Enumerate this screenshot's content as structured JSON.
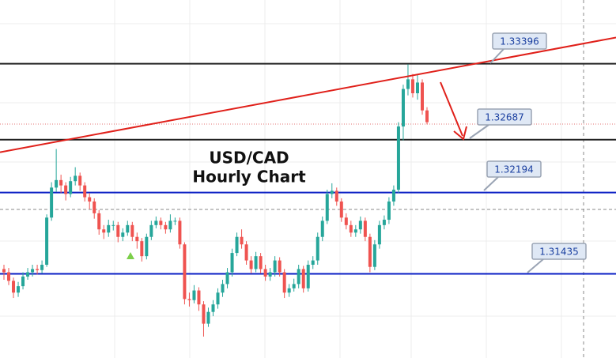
{
  "chart_data": {
    "type": "candlestick",
    "title": "USD/CAD",
    "subtitle": "Hourly Chart",
    "ylim": [
      1.3065,
      1.3399
    ],
    "grid": true,
    "up_color": "#26a69a",
    "down_color": "#ef5350",
    "open": [
      1.3148,
      1.3145,
      1.3137,
      1.3126,
      1.3132,
      1.3141,
      1.3145,
      1.3148,
      1.3147,
      1.3152,
      1.3196,
      1.3224,
      1.3231,
      1.3226,
      1.3218,
      1.323,
      1.3235,
      1.3226,
      1.3215,
      1.3211,
      1.32,
      1.3185,
      1.3182,
      1.3189,
      1.3189,
      1.3178,
      1.3182,
      1.3189,
      1.3178,
      1.3174,
      1.316,
      1.3178,
      1.3189,
      1.3193,
      1.3189,
      1.3185,
      1.3193,
      1.3193,
      1.3171,
      1.312,
      1.3119,
      1.3128,
      1.3115,
      1.3097,
      1.3108,
      1.3115,
      1.3126,
      1.3134,
      1.3145,
      1.3163,
      1.3178,
      1.3171,
      1.3156,
      1.3148,
      1.316,
      1.3148,
      1.3141,
      1.3145,
      1.3156,
      1.3145,
      1.3126,
      1.313,
      1.3134,
      1.3148,
      1.313,
      1.3152,
      1.3156,
      1.3178,
      1.3193,
      1.3218,
      1.3221,
      1.3211,
      1.3196,
      1.3189,
      1.3182,
      1.3185,
      1.3193,
      1.3178,
      1.315,
      1.3171,
      1.3189,
      1.3194,
      1.3211,
      1.3222,
      1.3281,
      1.3316,
      1.3325,
      1.3312,
      1.3322,
      1.3296
    ],
    "high": [
      1.3152,
      1.3149,
      1.314,
      1.3136,
      1.3145,
      1.3149,
      1.3152,
      1.3152,
      1.3156,
      1.3199,
      1.3229,
      1.326,
      1.3236,
      1.3229,
      1.3234,
      1.3243,
      1.3238,
      1.3229,
      1.3219,
      1.3214,
      1.3203,
      1.3189,
      1.3194,
      1.3193,
      1.3192,
      1.3186,
      1.3193,
      1.3192,
      1.3182,
      1.3177,
      1.3181,
      1.3193,
      1.3197,
      1.3196,
      1.3192,
      1.3199,
      1.3196,
      1.3196,
      1.3173,
      1.3126,
      1.3133,
      1.3131,
      1.3118,
      1.3112,
      1.3119,
      1.313,
      1.3138,
      1.3149,
      1.3167,
      1.3182,
      1.3185,
      1.3174,
      1.316,
      1.3164,
      1.3163,
      1.3152,
      1.3149,
      1.316,
      1.3159,
      1.3148,
      1.3134,
      1.3139,
      1.3152,
      1.3151,
      1.3156,
      1.316,
      1.3182,
      1.3197,
      1.3222,
      1.3228,
      1.3224,
      1.3214,
      1.32,
      1.3193,
      1.3189,
      1.3197,
      1.3196,
      1.3181,
      1.3175,
      1.3193,
      1.3198,
      1.3215,
      1.3226,
      1.3285,
      1.332,
      1.3339,
      1.333,
      1.333,
      1.3325,
      1.3299
    ],
    "low": [
      1.3138,
      1.3133,
      1.3121,
      1.3122,
      1.3129,
      1.3138,
      1.3141,
      1.3143,
      1.3144,
      1.315,
      1.3193,
      1.322,
      1.3219,
      1.3212,
      1.3215,
      1.3226,
      1.3221,
      1.3211,
      1.3204,
      1.3195,
      1.318,
      1.3176,
      1.3178,
      1.3184,
      1.3173,
      1.3174,
      1.3179,
      1.3174,
      1.3167,
      1.3155,
      1.3157,
      1.3175,
      1.3186,
      1.3185,
      1.3181,
      1.3182,
      1.3189,
      1.3167,
      1.3115,
      1.3113,
      1.3116,
      1.3109,
      1.3085,
      1.3094,
      1.3104,
      1.3111,
      1.3122,
      1.313,
      1.3141,
      1.316,
      1.3167,
      1.3152,
      1.3144,
      1.3145,
      1.3144,
      1.3137,
      1.3137,
      1.3141,
      1.3141,
      1.3121,
      1.3122,
      1.3127,
      1.313,
      1.3126,
      1.3127,
      1.3148,
      1.3152,
      1.3174,
      1.319,
      1.3214,
      1.3207,
      1.3192,
      1.3185,
      1.3178,
      1.3178,
      1.3181,
      1.3174,
      1.3145,
      1.3147,
      1.3167,
      1.3185,
      1.319,
      1.3207,
      1.3219,
      1.3268,
      1.331,
      1.3308,
      1.3306,
      1.3292,
      1.3283
    ],
    "close": [
      1.3145,
      1.3137,
      1.3126,
      1.3132,
      1.3141,
      1.3145,
      1.3148,
      1.3147,
      1.3152,
      1.3196,
      1.3224,
      1.3231,
      1.3226,
      1.3218,
      1.323,
      1.3235,
      1.3226,
      1.3215,
      1.3211,
      1.32,
      1.3185,
      1.3182,
      1.3189,
      1.3189,
      1.3178,
      1.3182,
      1.3189,
      1.3178,
      1.3174,
      1.316,
      1.3178,
      1.3189,
      1.3193,
      1.3189,
      1.3185,
      1.3193,
      1.3193,
      1.3171,
      1.312,
      1.3119,
      1.3128,
      1.3115,
      1.3097,
      1.3108,
      1.3115,
      1.3126,
      1.3134,
      1.3145,
      1.3163,
      1.3178,
      1.3171,
      1.3156,
      1.3148,
      1.316,
      1.3148,
      1.3141,
      1.3145,
      1.3156,
      1.3145,
      1.3126,
      1.313,
      1.3134,
      1.3148,
      1.313,
      1.3152,
      1.3156,
      1.3178,
      1.3193,
      1.3218,
      1.3221,
      1.3211,
      1.3196,
      1.3189,
      1.3182,
      1.3185,
      1.3193,
      1.3178,
      1.315,
      1.3171,
      1.3189,
      1.3194,
      1.3211,
      1.3222,
      1.3281,
      1.3316,
      1.3325,
      1.3312,
      1.3322,
      1.3296,
      1.3285
    ],
    "levels": [
      {
        "value": 1.33396,
        "color": "#222222"
      },
      {
        "value": 1.32687,
        "color": "#222222"
      },
      {
        "value": 1.32194,
        "color": "#0a1fc4"
      },
      {
        "value": 1.31435,
        "color": "#0a1fc4"
      }
    ],
    "trendline": {
      "color": "#e0201a",
      "values": [
        1.3257,
        1.3364
      ]
    }
  }
}
